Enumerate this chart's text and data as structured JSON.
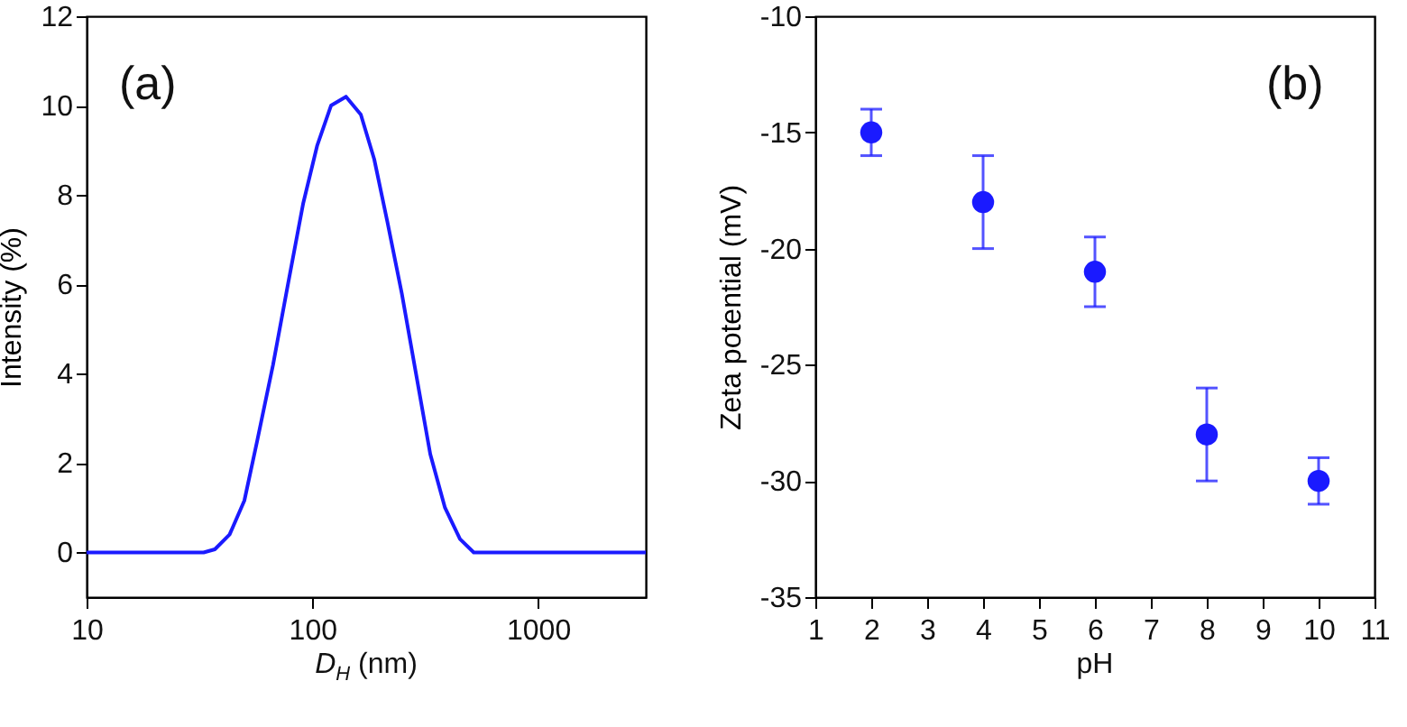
{
  "chart_data": [
    {
      "type": "line",
      "xlabel": "D$_{H}$ (nm)",
      "ylabel": "Intensity (%)",
      "annotations": [
        "(a)"
      ],
      "log": "x",
      "xlim": [
        10,
        3000
      ],
      "xticks": [
        10,
        100,
        1000
      ],
      "ylim": [
        -1,
        12
      ],
      "yticks": [
        0,
        2,
        4,
        6,
        8,
        10,
        12
      ],
      "grid": false,
      "marker": "none",
      "line_style": "solid",
      "series": [
        {
          "color": "#1a1aff",
          "x": [
            10,
            33,
            37,
            43,
            50,
            57,
            67,
            78,
            91,
            105,
            121,
            141,
            164,
            188,
            215,
            249,
            288,
            333,
            387,
            451,
            519,
            3000
          ],
          "values": [
            0,
            0,
            0.07,
            0.4,
            1.16,
            2.5,
            4.2,
            6.0,
            7.8,
            9.1,
            10.0,
            10.2,
            9.8,
            8.8,
            7.4,
            5.8,
            4.0,
            2.2,
            1.0,
            0.3,
            0,
            0
          ]
        }
      ]
    },
    {
      "type": "scatter",
      "xlabel": "pH",
      "ylabel": "Zeta potential (mV)",
      "annotations": [
        "(b)"
      ],
      "xlim": [
        1,
        11
      ],
      "xticks": [
        1,
        2,
        3,
        4,
        5,
        6,
        7,
        8,
        9,
        10,
        11
      ],
      "ylim": [
        -35,
        -10
      ],
      "yticks": [
        -35,
        -30,
        -25,
        -20,
        -15,
        -10
      ],
      "grid": false,
      "marker": "circle",
      "series": [
        {
          "color": "#1a1aff",
          "x": [
            2,
            4,
            6,
            8,
            10
          ],
          "values": [
            -15,
            -18,
            -21,
            -28,
            -30
          ],
          "errors": [
            [
              -16,
              -14
            ],
            [
              -20,
              -16
            ],
            [
              -22.5,
              -19.5
            ],
            [
              -30,
              -26
            ],
            [
              -31,
              -29
            ]
          ]
        }
      ]
    }
  ]
}
